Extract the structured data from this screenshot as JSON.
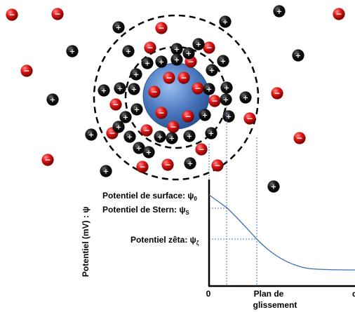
{
  "labels": {
    "y_axis": "Potentiel (mV) : ψ",
    "surface": "Potentiel de surface: ψ",
    "surface_sub": "0",
    "stern": "Potentiel de Stern: ψ",
    "stern_sub": "S",
    "zeta": "Potentiel zêta: ψ",
    "zeta_sub": "ζ",
    "x_zero": "0",
    "x_plane_line1": "Plan de",
    "x_plane_line2": "glissement",
    "x_end": "d"
  },
  "ion_symbols": {
    "positive": "+",
    "negative": "−"
  },
  "colors": {
    "positive_ion": "#000000",
    "negative_ion": "#e01010",
    "particle": "#4f7cc2",
    "curve": "#3a6fb8",
    "dotted_guides": "#4a7cc7"
  }
}
